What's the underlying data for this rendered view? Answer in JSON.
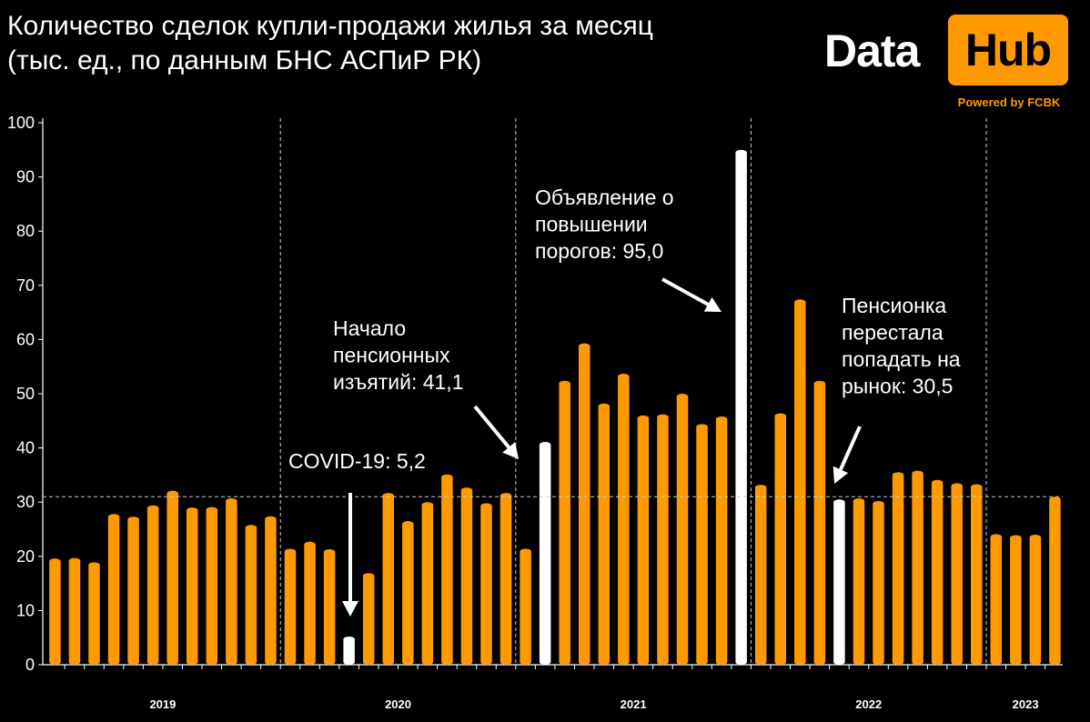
{
  "title_line1": "Количество сделок купли-продажи жилья за месяц",
  "title_line2": "(тыс. ед., по данным БНС АСПиР РК)",
  "logo": {
    "word1": "Data",
    "word2": "Hub",
    "powered": "Powered by FCBK"
  },
  "colors": {
    "bar": "#ff9900",
    "highlight": "#ffffff",
    "background": "#000000",
    "grid": "#cccccc"
  },
  "chart_data": {
    "type": "bar",
    "ylim": [
      0,
      100
    ],
    "yticks": [
      0,
      10,
      20,
      30,
      40,
      50,
      60,
      70,
      80,
      90,
      100
    ],
    "reference_line": 31,
    "years": [
      {
        "label": "2019",
        "months": 12
      },
      {
        "label": "2020",
        "months": 12
      },
      {
        "label": "2021",
        "months": 12
      },
      {
        "label": "2022",
        "months": 12
      },
      {
        "label": "2023",
        "months": 4
      }
    ],
    "values": [
      19.6,
      19.7,
      18.9,
      27.8,
      27.3,
      29.4,
      32.1,
      29.0,
      29.1,
      30.7,
      25.8,
      27.4,
      21.4,
      22.7,
      21.3,
      5.2,
      16.9,
      31.7,
      26.5,
      30.0,
      35.1,
      32.7,
      29.8,
      31.7,
      21.4,
      41.1,
      52.4,
      59.3,
      48.2,
      53.7,
      46.0,
      46.2,
      50.0,
      44.4,
      45.8,
      95.0,
      33.2,
      46.4,
      67.4,
      52.4,
      30.5,
      30.7,
      30.2,
      35.5,
      35.8,
      34.1,
      33.5,
      33.3,
      24.1,
      23.9,
      24.0,
      31.0
    ],
    "highlighted": [
      15,
      25,
      35,
      40
    ],
    "annotations": [
      {
        "lines": [
          "COVID-19: 5,2"
        ],
        "target": 15
      },
      {
        "lines": [
          "Начало",
          "пенсионных",
          "изъятий: 41,1"
        ],
        "target": 25
      },
      {
        "lines": [
          "Объявление о",
          "повышении",
          "порогов: 95,0"
        ],
        "target": 35
      },
      {
        "lines": [
          "Пенсионка",
          "перестала",
          "попадать на",
          "рынок: 30,5"
        ],
        "target": 40
      }
    ]
  }
}
